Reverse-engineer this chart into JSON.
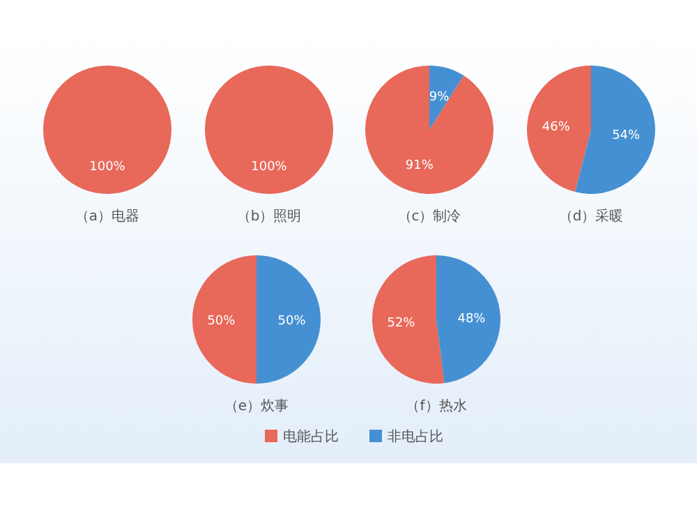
{
  "chart_data": [
    {
      "type": "pie",
      "title": "（a）电器",
      "categories": [
        "电能占比",
        "非电占比"
      ],
      "values": [
        100,
        0
      ],
      "colors": [
        "#e8685a",
        "#4590d3"
      ],
      "value_labels": [
        "100%",
        null
      ],
      "legend": "bottom"
    },
    {
      "type": "pie",
      "title": "（b）照明",
      "categories": [
        null
      ],
      "values": [
        100
      ],
      "colors": [
        "#e8685a"
      ],
      "value_labels": [
        "100%"
      ]
    },
    {
      "type": "pie",
      "title": "（c）制冷",
      "categories": [
        null,
        null
      ],
      "values": [
        91,
        9
      ],
      "colors": [
        "#e8685a",
        "#4590d3"
      ],
      "value_labels": [
        "91%",
        "9%"
      ]
    },
    {
      "type": "pie",
      "title": "（d）采暖",
      "categories": [
        null,
        null
      ],
      "values": [
        46,
        54
      ],
      "colors": [
        "#e8685a",
        "#4590d3"
      ],
      "value_labels": [
        "46%",
        "54%"
      ]
    },
    {
      "type": "pie",
      "title": "（e）炊事",
      "categories": [
        null,
        null
      ],
      "values": [
        50,
        50
      ],
      "colors": [
        "#e8685a",
        "#4590d3"
      ],
      "value_labels": [
        "50%",
        "50%"
      ]
    },
    {
      "type": "pie",
      "title": "（f）热水",
      "categories": [
        null,
        null
      ],
      "values": [
        52,
        48
      ],
      "colors": [
        "#e8685a",
        "#4590d3"
      ],
      "value_labels": [
        "52%",
        "48%"
      ]
    }
  ]
}
